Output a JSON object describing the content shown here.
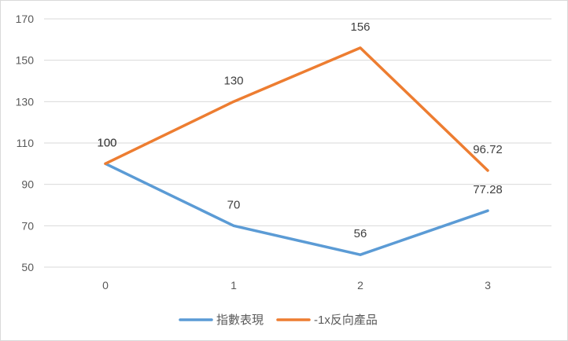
{
  "chart_data": {
    "type": "line",
    "x": [
      0,
      1,
      2,
      3
    ],
    "ylim": [
      50,
      170
    ],
    "yticks": [
      50,
      70,
      90,
      110,
      130,
      150,
      170
    ],
    "grid": true,
    "legend_position": "bottom",
    "series": [
      {
        "name": "指數表現",
        "color": "#5B9BD5",
        "values": [
          100,
          70,
          56,
          77.28
        ],
        "labels": [
          "100",
          "70",
          "56",
          "77.28"
        ]
      },
      {
        "name": "-1x反向產品",
        "color": "#ED7D31",
        "values": [
          100,
          130,
          156,
          96.72
        ],
        "labels": [
          "100",
          "130",
          "156",
          "96.72"
        ]
      }
    ]
  }
}
